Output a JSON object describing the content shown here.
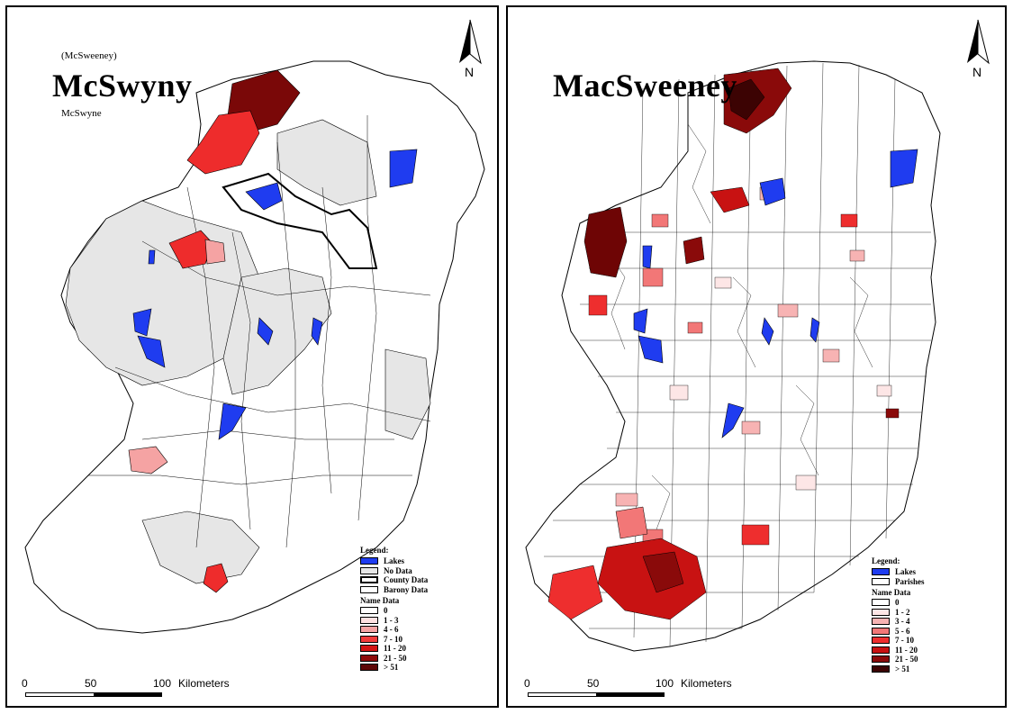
{
  "left": {
    "alias_top": "(McSweeney)",
    "title": "McSwyny",
    "alias_bottom": "McSwyne",
    "north": "N",
    "legend": {
      "heading": "Legend:",
      "items": [
        {
          "label": "Lakes",
          "color": "#1f3cf0"
        },
        {
          "label": "No Data",
          "color": "#e6e6e6"
        },
        {
          "label": "County Data",
          "color": "#ffffff"
        },
        {
          "label": "Barony Data",
          "color": "#ffffff"
        }
      ],
      "name_heading": "Name Data",
      "classes": [
        {
          "label": "0",
          "color": "#ffffff"
        },
        {
          "label": "1 - 3",
          "color": "#fde0e0"
        },
        {
          "label": "4 - 6",
          "color": "#f5a3a3"
        },
        {
          "label": "7 - 10",
          "color": "#f23a3a"
        },
        {
          "label": "11 - 20",
          "color": "#d41414"
        },
        {
          "label": "21 - 50",
          "color": "#8e0a0a"
        },
        {
          "label": "> 51",
          "color": "#5e0606"
        }
      ]
    },
    "scale": {
      "ticks": [
        "0",
        "50",
        "100"
      ],
      "unit": "Kilometers"
    }
  },
  "right": {
    "title": "MacSweeney",
    "north": "N",
    "legend": {
      "heading": "Legend:",
      "items": [
        {
          "label": "Lakes",
          "color": "#1f3cf0"
        },
        {
          "label": "Parishes",
          "color": "#ffffff"
        }
      ],
      "name_heading": "Name Data",
      "classes": [
        {
          "label": "0",
          "color": "#ffffff"
        },
        {
          "label": "1 - 2",
          "color": "#fde6e6"
        },
        {
          "label": "3 - 4",
          "color": "#f7b3b3"
        },
        {
          "label": "5 - 6",
          "color": "#f27777"
        },
        {
          "label": "7 - 10",
          "color": "#ee2e2e"
        },
        {
          "label": "11 - 20",
          "color": "#c81212"
        },
        {
          "label": "21 - 50",
          "color": "#8a0a0a"
        },
        {
          "label": "> 51",
          "color": "#3c0303"
        }
      ]
    },
    "scale": {
      "ticks": [
        "0",
        "50",
        "100"
      ],
      "unit": "Kilometers"
    }
  }
}
